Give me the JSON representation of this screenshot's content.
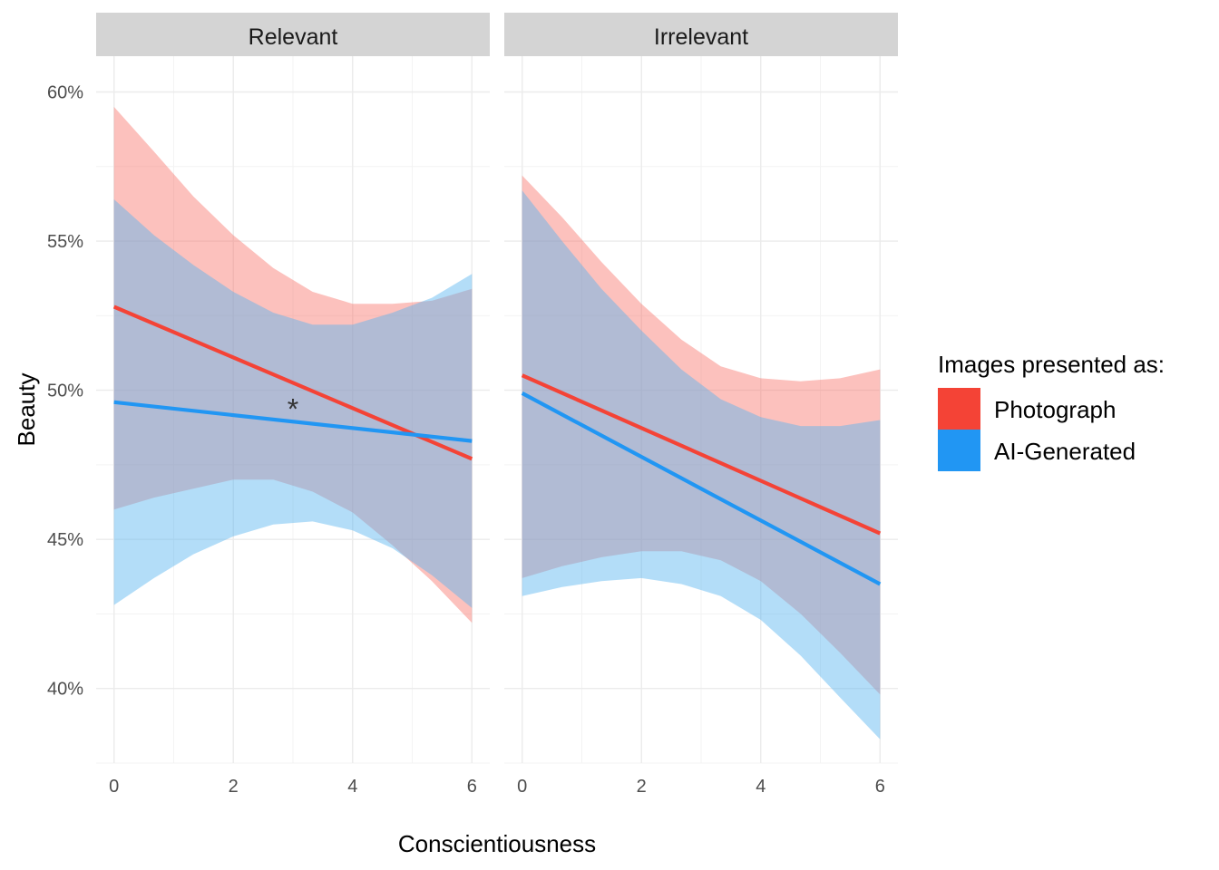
{
  "chart_data": {
    "type": "line",
    "xlabel": "Conscientiousness",
    "ylabel": "Beauty",
    "xlim": [
      -0.3,
      6.3
    ],
    "ylim": [
      37.5,
      61.2
    ],
    "x_ticks": [
      0,
      2,
      4,
      6
    ],
    "y_ticks": [
      40,
      45,
      50,
      55,
      60
    ],
    "y_tick_labels": [
      "40%",
      "45%",
      "50%",
      "55%",
      "60%"
    ],
    "grid": true,
    "legend": {
      "title": "Images presented as:",
      "placement": "right",
      "entries": [
        {
          "name": "Photograph",
          "color": "#f44336"
        },
        {
          "name": "AI-Generated",
          "color": "#2196f3"
        }
      ]
    },
    "colors": {
      "Photograph": "#f44336",
      "Photograph_band": "#f8766d",
      "AI-Generated": "#2196f3",
      "AI-Generated_band": "#56b4f0"
    },
    "panels": [
      {
        "title": "Relevant",
        "annotation": {
          "text": "*",
          "x": 3,
          "y": 49.4
        },
        "series": [
          {
            "name": "Photograph",
            "x": [
              0,
              6
            ],
            "y": [
              52.8,
              47.7
            ],
            "band_x": [
              0,
              0.67,
              1.33,
              2,
              2.67,
              3.33,
              4,
              4.67,
              5.33,
              6
            ],
            "band_lower": [
              46.0,
              46.4,
              46.7,
              47.0,
              47.0,
              46.6,
              45.9,
              44.8,
              43.6,
              42.2
            ],
            "band_upper": [
              59.5,
              58.0,
              56.5,
              55.2,
              54.1,
              53.3,
              52.9,
              52.9,
              53.0,
              53.4
            ]
          },
          {
            "name": "AI-Generated",
            "x": [
              0,
              6
            ],
            "y": [
              49.6,
              48.3
            ],
            "band_x": [
              0,
              0.67,
              1.33,
              2,
              2.67,
              3.33,
              4,
              4.67,
              5.33,
              6
            ],
            "band_lower": [
              42.8,
              43.7,
              44.5,
              45.1,
              45.5,
              45.6,
              45.3,
              44.7,
              43.8,
              42.7
            ],
            "band_upper": [
              56.4,
              55.2,
              54.2,
              53.3,
              52.6,
              52.2,
              52.2,
              52.6,
              53.1,
              53.9
            ]
          }
        ]
      },
      {
        "title": "Irrelevant",
        "annotation": null,
        "series": [
          {
            "name": "Photograph",
            "x": [
              0,
              6
            ],
            "y": [
              50.5,
              45.2
            ],
            "band_x": [
              0,
              0.67,
              1.33,
              2,
              2.67,
              3.33,
              4,
              4.67,
              5.33,
              6
            ],
            "band_lower": [
              43.7,
              44.1,
              44.4,
              44.6,
              44.6,
              44.3,
              43.6,
              42.5,
              41.2,
              39.8
            ],
            "band_upper": [
              57.2,
              55.8,
              54.3,
              52.9,
              51.7,
              50.8,
              50.4,
              50.3,
              50.4,
              50.7
            ]
          },
          {
            "name": "AI-Generated",
            "x": [
              0,
              6
            ],
            "y": [
              49.9,
              43.5
            ],
            "band_x": [
              0,
              0.67,
              1.33,
              2,
              2.67,
              3.33,
              4,
              4.67,
              5.33,
              6
            ],
            "band_lower": [
              43.1,
              43.4,
              43.6,
              43.7,
              43.5,
              43.1,
              42.3,
              41.1,
              39.7,
              38.3
            ],
            "band_upper": [
              56.7,
              55.0,
              53.4,
              52.0,
              50.7,
              49.7,
              49.1,
              48.8,
              48.8,
              49.0
            ]
          }
        ]
      }
    ]
  }
}
